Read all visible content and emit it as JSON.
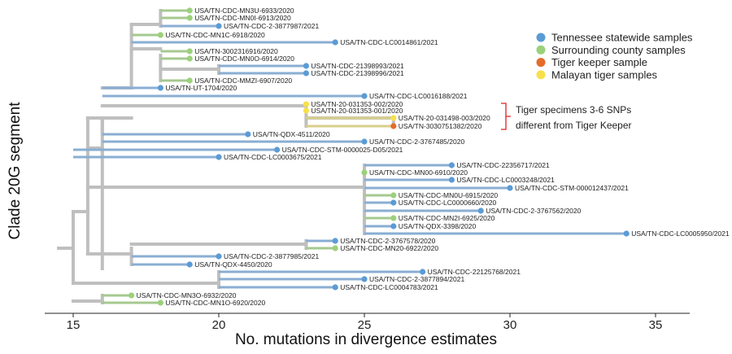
{
  "xaxis": {
    "title": "No. mutations in divergence estimates",
    "ticks": [
      15,
      20,
      25,
      30,
      35
    ],
    "range": [
      14,
      36
    ]
  },
  "yaxis": {
    "title": "Clade 20G segment"
  },
  "legend": [
    {
      "label": "Tennessee statewide samples",
      "color": "#5b9bd5",
      "category": "statewide"
    },
    {
      "label": "Surrounding county samples",
      "color": "#9bd17a",
      "category": "county"
    },
    {
      "label": "Tiger keeper sample",
      "color": "#e46b2b",
      "category": "keeper"
    },
    {
      "label": "Malayan tiger samples",
      "color": "#f7e04a",
      "category": "tiger"
    }
  ],
  "annotation": {
    "lines": [
      "Tiger specimens 3-6 SNPs",
      "different from Tiger Keeper"
    ]
  },
  "colors": {
    "backbone": "#bfbfbf",
    "statewide_branch": "#8aaed3",
    "county_branch": "#a5c98f",
    "tiger_branch": "#d8cf8a",
    "annotation_bracket": "#e02020"
  },
  "tips": [
    {
      "label": "USA/TN-CDC-MN3U-6933/2020",
      "divergence": 19,
      "category": "county"
    },
    {
      "label": "USA/TN-CDC-MN0I-6913/2020",
      "divergence": 19,
      "category": "county"
    },
    {
      "label": "USA/TN-CDC-2-3877987/2021",
      "divergence": 20,
      "category": "statewide"
    },
    {
      "label": "USA/TN-CDC-MN1C-6918/2020",
      "divergence": 18,
      "category": "county"
    },
    {
      "label": "USA/TN-CDC-LC0014861/2021",
      "divergence": 24,
      "category": "statewide"
    },
    {
      "label": "USA/TN-3002316916/2020",
      "divergence": 19,
      "category": "county"
    },
    {
      "label": "USA/TN-CDC-MN0O-6914/2020",
      "divergence": 19,
      "category": "county"
    },
    {
      "label": "USA/TN-CDC-21398993/2021",
      "divergence": 23,
      "category": "statewide"
    },
    {
      "label": "USA/TN-CDC-21398996/2021",
      "divergence": 23,
      "category": "statewide"
    },
    {
      "label": "USA/TN-CDC-MMZI-6907/2020",
      "divergence": 19,
      "category": "county"
    },
    {
      "label": "USA/TN-UT-1704/2020",
      "divergence": 18,
      "category": "statewide"
    },
    {
      "label": "USA/TN-CDC-LC0016188/2021",
      "divergence": 25,
      "category": "statewide"
    },
    {
      "label": "USA/TN-20-031353-002/2020",
      "divergence": 23,
      "category": "tiger"
    },
    {
      "label": "USA/TN-20-031353-001/2020",
      "divergence": 23,
      "category": "tiger"
    },
    {
      "label": "USA/TN-20-031498-003/2020",
      "divergence": 26,
      "category": "tiger"
    },
    {
      "label": "USA/TN-3030751382/2020",
      "divergence": 26,
      "category": "keeper"
    },
    {
      "label": "USA/TN-QDX-4511/2020",
      "divergence": 21,
      "category": "statewide"
    },
    {
      "label": "USA/TN-CDC-2-3767485/2020",
      "divergence": 25,
      "category": "statewide"
    },
    {
      "label": "USA/TN-CDC-STM-0000025-D05/2021",
      "divergence": 22,
      "category": "statewide"
    },
    {
      "label": "USA/TN-CDC-LC0003675/2021",
      "divergence": 20,
      "category": "statewide"
    },
    {
      "label": "USA/TN-CDC-22356717/2021",
      "divergence": 28,
      "category": "statewide"
    },
    {
      "label": "USA/TN-CDC-MN00-6910/2020",
      "divergence": 25,
      "category": "county"
    },
    {
      "label": "USA/TN-CDC-LC0003248/2021",
      "divergence": 28,
      "category": "statewide"
    },
    {
      "label": "USA/TN-CDC-STM-000012437/2021",
      "divergence": 30,
      "category": "statewide"
    },
    {
      "label": "USA/TN-CDC-MN0U-6915/2020",
      "divergence": 26,
      "category": "county"
    },
    {
      "label": "USA/TN-CDC-LC0000660/2020",
      "divergence": 26,
      "category": "statewide"
    },
    {
      "label": "USA/TN-CDC-2-3767562/2020",
      "divergence": 29,
      "category": "statewide"
    },
    {
      "label": "USA/TN-CDC-MN2I-6925/2020",
      "divergence": 26,
      "category": "county"
    },
    {
      "label": "USA/TN-QDX-3398/2020",
      "divergence": 26,
      "category": "statewide"
    },
    {
      "label": "USA/TN-CDC-LC0005950/2021",
      "divergence": 34,
      "category": "statewide"
    },
    {
      "label": "USA/TN-CDC-2-3767578/2020",
      "divergence": 24,
      "category": "statewide"
    },
    {
      "label": "USA/TN-CDC-MN20-6922/2020",
      "divergence": 24,
      "category": "county"
    },
    {
      "label": "USA/TN-CDC-2-3877985/2021",
      "divergence": 20,
      "category": "statewide"
    },
    {
      "label": "USA/TN-QDX-4450/2020",
      "divergence": 19,
      "category": "statewide"
    },
    {
      "label": "USA/TN-CDC-22125768/2021",
      "divergence": 27,
      "category": "statewide"
    },
    {
      "label": "USA/TN-CDC-2-3877894/2021",
      "divergence": 25,
      "category": "statewide"
    },
    {
      "label": "USA/TN-CDC-LC0004783/2021",
      "divergence": 24,
      "category": "statewide"
    },
    {
      "label": "USA/TN-CDC-MN3O-6932/2020",
      "divergence": 17,
      "category": "county"
    },
    {
      "label": "USA/TN-CDC-MN1O-6920/2020",
      "divergence": 18,
      "category": "county"
    }
  ]
}
